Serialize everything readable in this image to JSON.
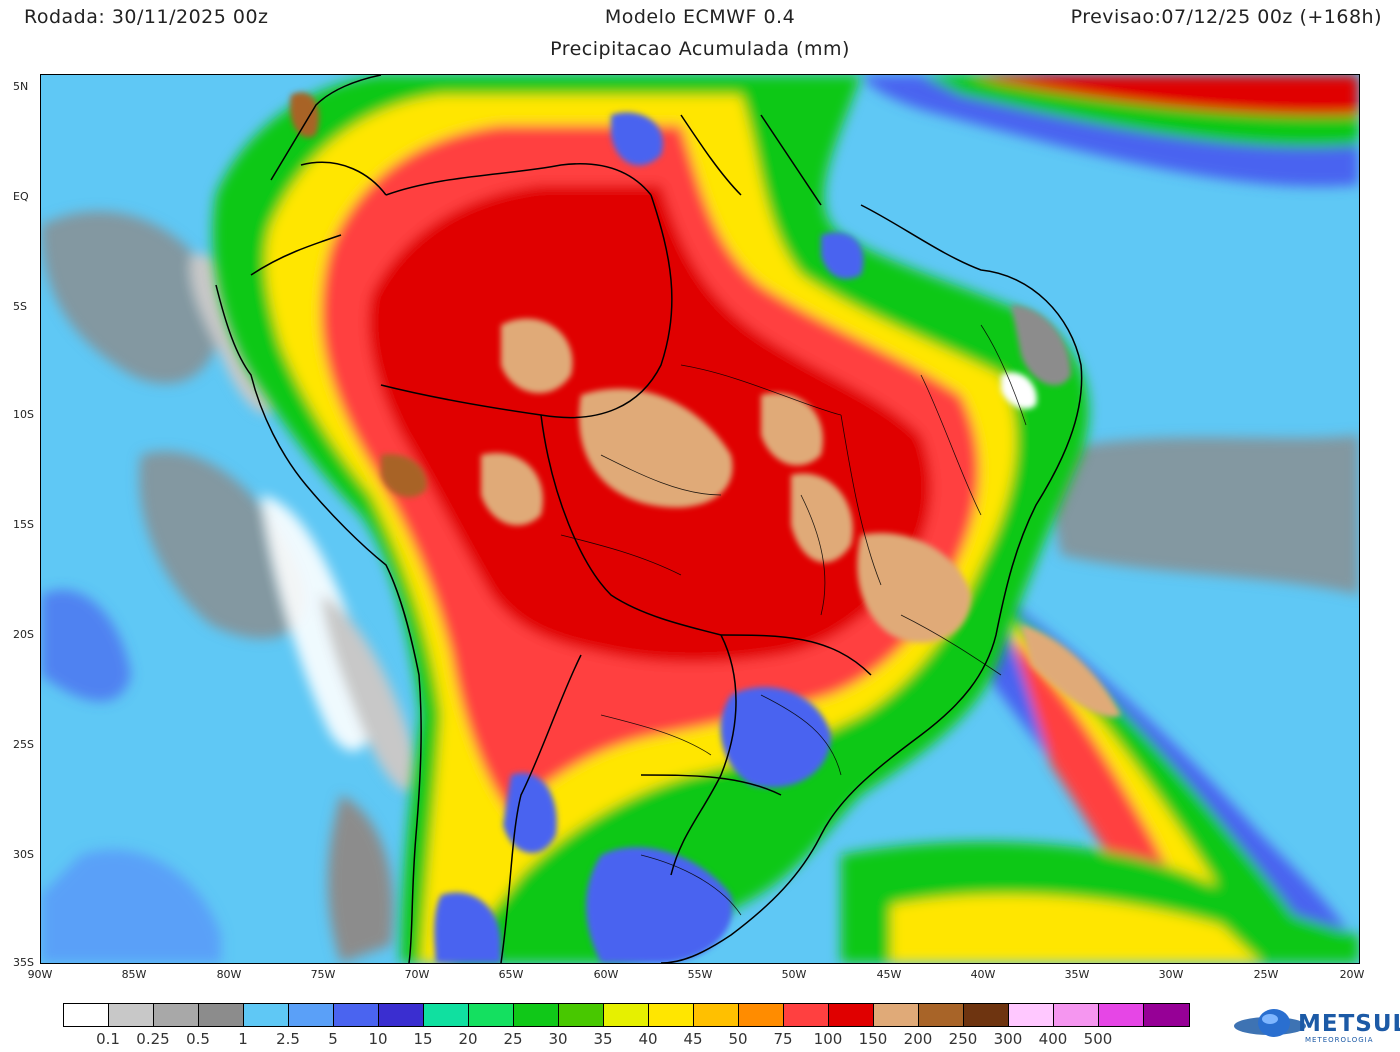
{
  "header": {
    "run": "Rodada: 30/11/2025 00z",
    "model": "Modelo ECMWF 0.4",
    "forecast": "Previsao:07/12/25 00z (+168h)",
    "product": "Precipitacao Acumulada (mm)"
  },
  "map": {
    "lat_labels": [
      "5N",
      "EQ",
      "5S",
      "10S",
      "15S",
      "20S",
      "25S",
      "30S",
      "35S"
    ],
    "lon_labels": [
      "90W",
      "85W",
      "80W",
      "75W",
      "70W",
      "65W",
      "60W",
      "55W",
      "50W",
      "45W",
      "40W",
      "35W",
      "30W",
      "25W",
      "20W"
    ],
    "lat_range": [
      5.5,
      -35
    ],
    "lon_range": [
      -90,
      -20
    ]
  },
  "colorbar": {
    "colors": [
      "#ffffff",
      "#c8c8c8",
      "#a8a8a8",
      "#8c8c8c",
      "#5fc8f5",
      "#5aa0f8",
      "#4a64f0",
      "#3a2ed0",
      "#10e0a0",
      "#14e060",
      "#10c818",
      "#48c800",
      "#e6f000",
      "#ffe600",
      "#ffc000",
      "#ff8c00",
      "#ff4040",
      "#e00000",
      "#e0aa78",
      "#a86428",
      "#6e3410",
      "#ffc8ff",
      "#f596f0",
      "#e646e6",
      "#960096"
    ],
    "labels": [
      "0.1",
      "0.25",
      "0.5",
      "1",
      "2.5",
      "5",
      "10",
      "15",
      "20",
      "25",
      "30",
      "35",
      "40",
      "45",
      "50",
      "75",
      "100",
      "150",
      "200",
      "250",
      "300",
      "400",
      "500"
    ]
  },
  "logo": {
    "name": "METSUL",
    "tagline": "METEOROLOGIA"
  }
}
